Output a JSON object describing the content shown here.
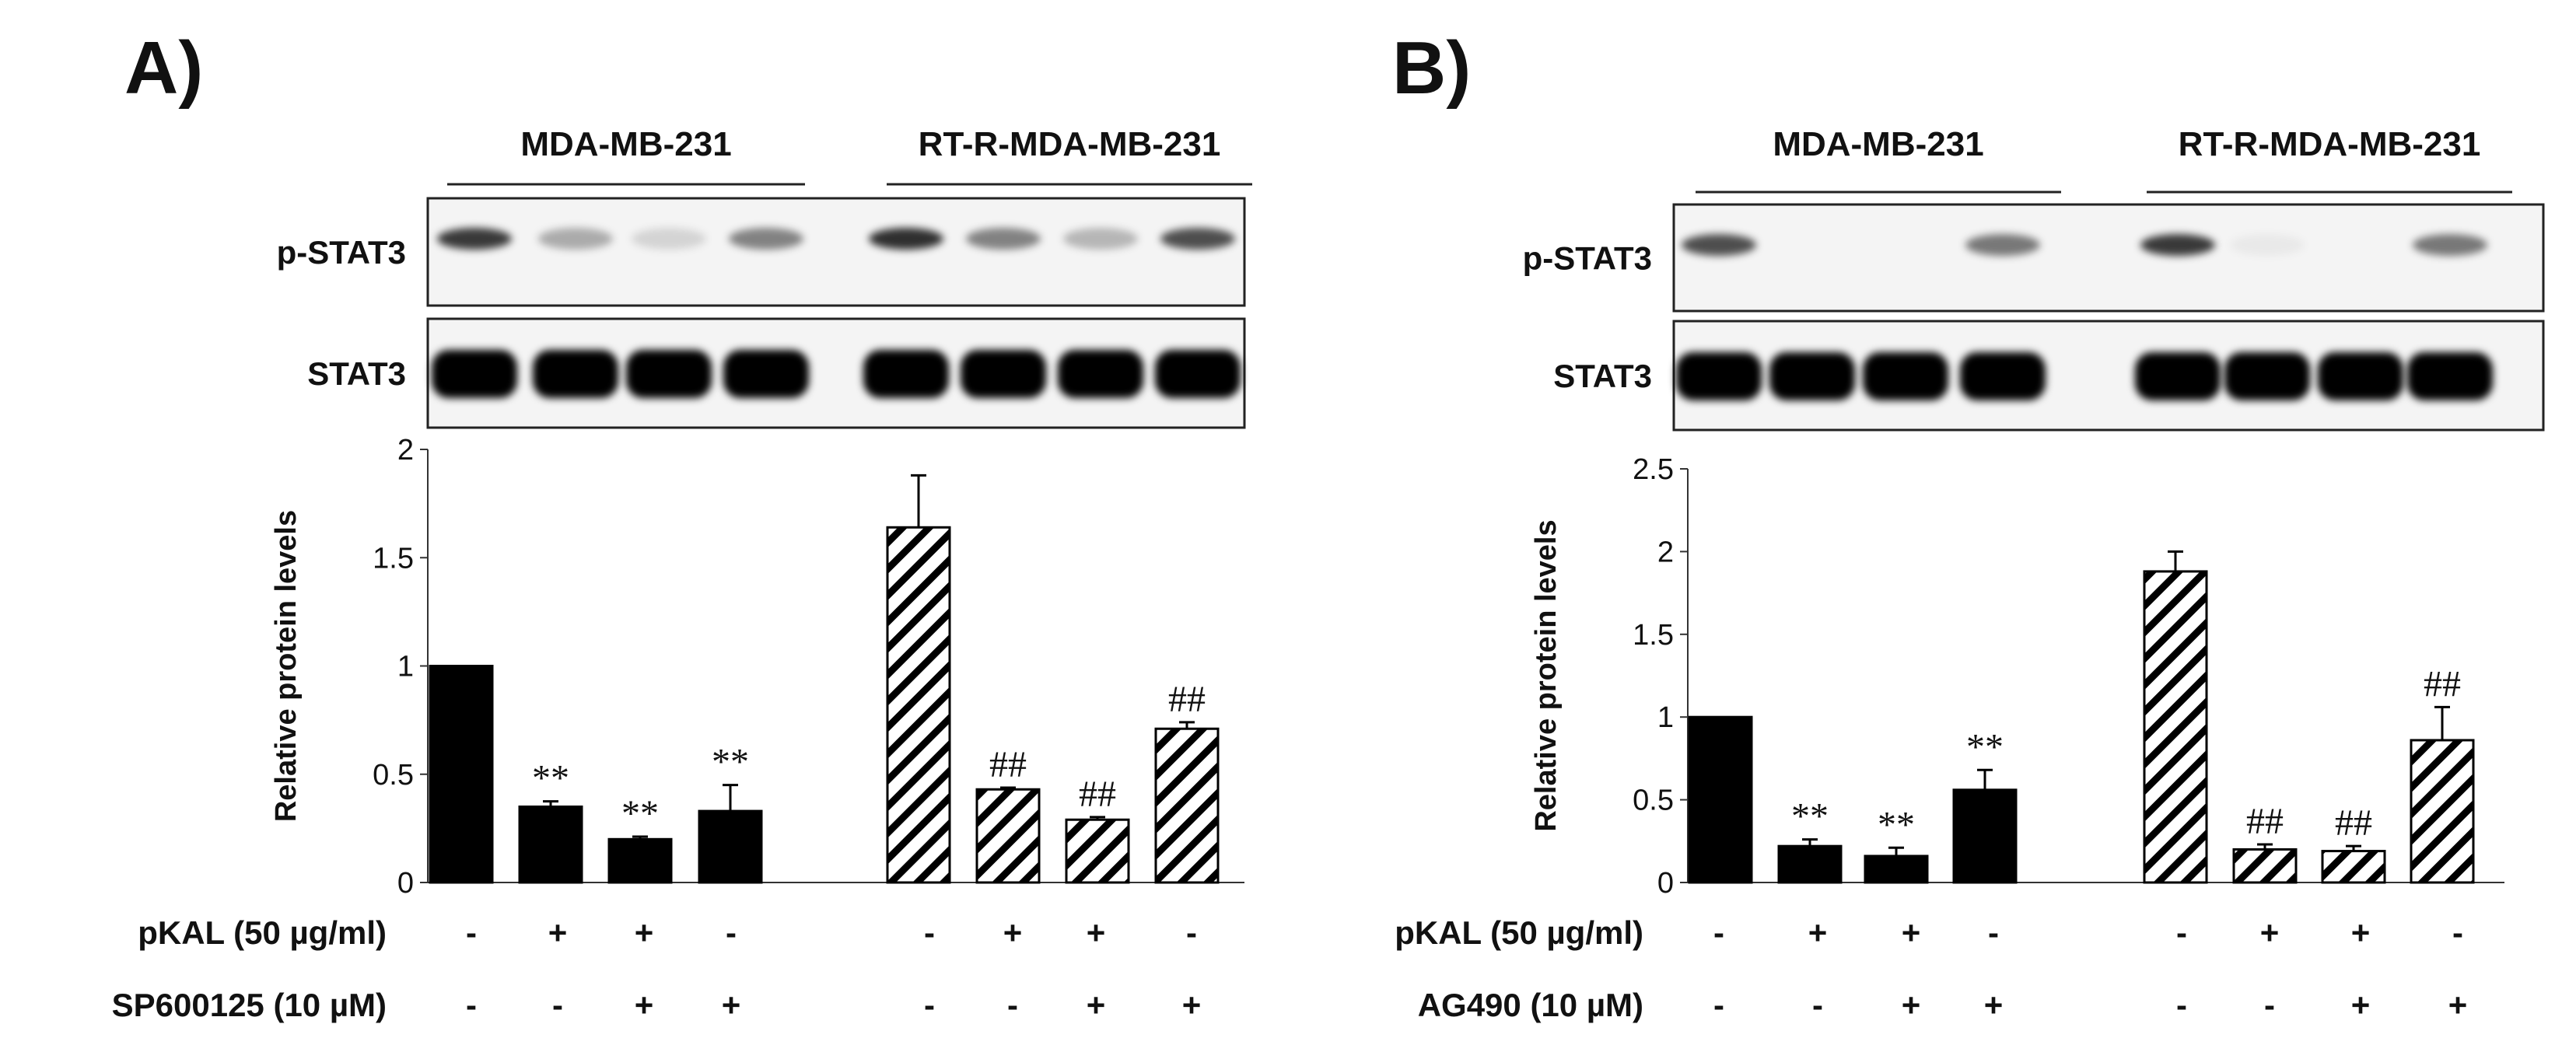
{
  "chart_data": [
    {
      "panel": "A)",
      "type": "bar",
      "cell_lines": [
        "MDA-MB-231",
        "RT-R-MDA-MB-231"
      ],
      "blot_labels": [
        "p-STAT3",
        "STAT3"
      ],
      "ylabel": "Relative  protein levels",
      "ylim": [
        0,
        2
      ],
      "yticks": [
        "0",
        "0.5",
        "1",
        "1.5",
        "2"
      ],
      "values": [
        1.0,
        0.35,
        0.2,
        0.33,
        1.64,
        0.43,
        0.29,
        0.71
      ],
      "errors": [
        0,
        0.025,
        0.012,
        0.12,
        0.24,
        0.008,
        0.012,
        0.03
      ],
      "groups": [
        0,
        0,
        0,
        0,
        1,
        1,
        1,
        1
      ],
      "annotations": [
        "",
        "**",
        "**",
        "**",
        "",
        "##",
        "##",
        "##"
      ],
      "treatment_rows": [
        {
          "label": "pKAL (50 µg/ml)",
          "signs": [
            "-",
            "+",
            "+",
            "-",
            "-",
            "+",
            "+",
            "-"
          ]
        },
        {
          "label": "SP600125 (10 µM)",
          "signs": [
            "-",
            "-",
            "+",
            "+",
            "-",
            "-",
            "+",
            "+"
          ]
        }
      ]
    },
    {
      "panel": "B)",
      "type": "bar",
      "cell_lines": [
        "MDA-MB-231",
        "RT-R-MDA-MB-231"
      ],
      "blot_labels": [
        "p-STAT3",
        "STAT3"
      ],
      "ylabel": "Relative  protein levels",
      "ylim": [
        0,
        2.5
      ],
      "yticks": [
        "0",
        "0.5",
        "1",
        "1.5",
        "2",
        "2.5"
      ],
      "values": [
        1.0,
        0.22,
        0.16,
        0.56,
        1.88,
        0.2,
        0.19,
        0.86
      ],
      "errors": [
        0,
        0.04,
        0.05,
        0.12,
        0.12,
        0.03,
        0.03,
        0.2
      ],
      "groups": [
        0,
        0,
        0,
        0,
        1,
        1,
        1,
        1
      ],
      "annotations": [
        "",
        "**",
        "**",
        "**",
        "",
        "##",
        "##",
        "##"
      ],
      "treatment_rows": [
        {
          "label": "pKAL (50 µg/ml)",
          "signs": [
            "-",
            "+",
            "+",
            "-",
            "-",
            "+",
            "+",
            "-"
          ]
        },
        {
          "label": "AG490 (10 µM)",
          "signs": [
            "-",
            "-",
            "+",
            "+",
            "-",
            "-",
            "+",
            "+"
          ]
        }
      ]
    }
  ],
  "colors": {
    "solid_bar": "#000000",
    "hatched_bar": "#000000",
    "axis": "#333333",
    "blot_bg": "#f4f4f4"
  }
}
